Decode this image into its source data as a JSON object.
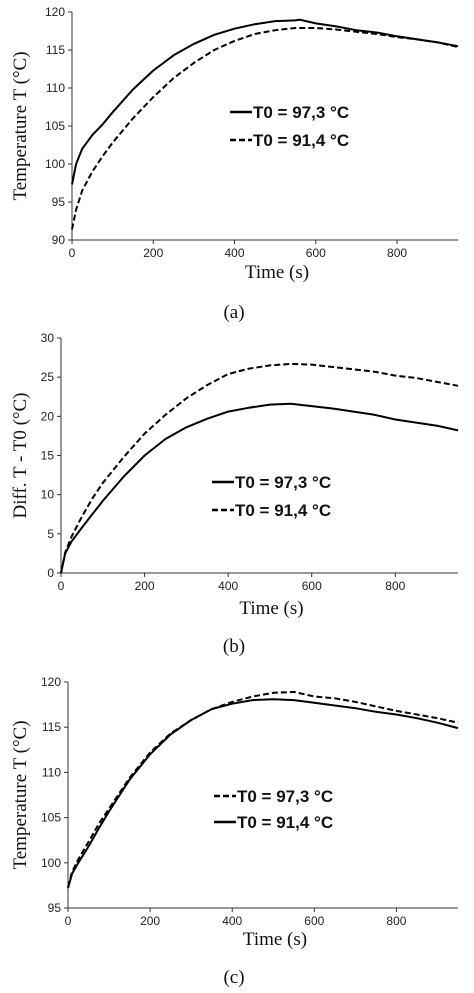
{
  "chart_data": [
    {
      "type": "line",
      "panel_label": "(a)",
      "xlabel": "Time (s)",
      "ylabel": "Temperature T (°C)",
      "xlim": [
        0,
        950
      ],
      "ylim": [
        90,
        120
      ],
      "xticks": [
        0,
        200,
        400,
        600,
        800
      ],
      "yticks": [
        90,
        95,
        100,
        105,
        110,
        115,
        120
      ],
      "legend_position": "center-right",
      "series": [
        {
          "name": "T0 = 97,3 °C",
          "style": "solid",
          "x": [
            0,
            10,
            25,
            50,
            75,
            100,
            150,
            200,
            250,
            300,
            350,
            400,
            450,
            500,
            550,
            560,
            600,
            650,
            700,
            750,
            800,
            850,
            900,
            950
          ],
          "y": [
            97.3,
            100,
            102,
            103.8,
            105.2,
            106.8,
            109.8,
            112.3,
            114.3,
            115.8,
            117,
            117.8,
            118.4,
            118.8,
            118.9,
            119,
            118.5,
            118.1,
            117.6,
            117.3,
            116.8,
            116.4,
            116,
            115.5
          ]
        },
        {
          "name": "T0 = 91,4 °C",
          "style": "dashed",
          "x": [
            0,
            10,
            25,
            50,
            75,
            100,
            150,
            200,
            250,
            300,
            350,
            400,
            450,
            500,
            550,
            600,
            650,
            700,
            750,
            800,
            850,
            900,
            950
          ],
          "y": [
            91.4,
            94,
            96.5,
            99,
            101,
            102.8,
            106,
            108.8,
            111.3,
            113.3,
            115,
            116.2,
            117.1,
            117.6,
            117.9,
            117.9,
            117.7,
            117.4,
            117.1,
            116.7,
            116.4,
            116,
            115.4
          ]
        }
      ]
    },
    {
      "type": "line",
      "panel_label": "(b)",
      "xlabel": "Time (s)",
      "ylabel": "Diff. T - T0 (°C)",
      "xlim": [
        0,
        950
      ],
      "ylim": [
        0,
        30
      ],
      "xticks": [
        0,
        200,
        400,
        600,
        800
      ],
      "yticks": [
        0,
        5,
        10,
        15,
        20,
        25,
        30
      ],
      "legend_position": "center-right",
      "series": [
        {
          "name": "T0 = 97,3 °C",
          "style": "solid",
          "x": [
            0,
            10,
            25,
            50,
            75,
            100,
            150,
            200,
            250,
            300,
            350,
            400,
            450,
            500,
            550,
            600,
            650,
            700,
            750,
            800,
            850,
            900,
            950
          ],
          "y": [
            0,
            2.5,
            4,
            5.8,
            7.5,
            9.2,
            12.3,
            15,
            17.1,
            18.6,
            19.7,
            20.6,
            21.1,
            21.5,
            21.6,
            21.3,
            21,
            20.6,
            20.2,
            19.6,
            19.2,
            18.8,
            18.2
          ]
        },
        {
          "name": "T0 = 91,4 °C",
          "style": "dashed",
          "x": [
            0,
            10,
            25,
            50,
            75,
            100,
            150,
            200,
            250,
            300,
            350,
            400,
            450,
            500,
            550,
            600,
            650,
            700,
            750,
            800,
            850,
            900,
            950
          ],
          "y": [
            0,
            2.6,
            4.6,
            7.2,
            9.5,
            11.5,
            14.8,
            17.8,
            20.2,
            22.3,
            24,
            25.4,
            26.1,
            26.5,
            26.7,
            26.6,
            26.3,
            26,
            25.7,
            25.2,
            24.9,
            24.4,
            23.9
          ]
        }
      ]
    },
    {
      "type": "line",
      "panel_label": "(c)",
      "xlabel": "Time (s)",
      "ylabel": "Temperature T (°C)",
      "xlim": [
        0,
        950
      ],
      "ylim": [
        95,
        120
      ],
      "xticks": [
        0,
        200,
        400,
        600,
        800
      ],
      "yticks": [
        95,
        100,
        105,
        110,
        115,
        120
      ],
      "legend_position": "center-right",
      "series": [
        {
          "name": "T0 = 97,3 °C",
          "style": "dashed",
          "x": [
            0,
            10,
            25,
            50,
            75,
            100,
            150,
            200,
            250,
            300,
            350,
            400,
            450,
            500,
            550,
            600,
            650,
            700,
            750,
            800,
            850,
            900,
            950
          ],
          "y": [
            97.3,
            99,
            100.4,
            102.3,
            104.3,
            106,
            109.4,
            112.2,
            114.3,
            115.8,
            117,
            117.8,
            118.4,
            118.8,
            118.9,
            118.4,
            118.2,
            117.8,
            117.3,
            116.8,
            116.4,
            116,
            115.5
          ]
        },
        {
          "name": "T0 = 91,4 °C",
          "style": "solid",
          "x": [
            0,
            10,
            25,
            50,
            75,
            100,
            150,
            200,
            250,
            300,
            350,
            400,
            450,
            500,
            550,
            600,
            650,
            700,
            750,
            800,
            850,
            900,
            950
          ],
          "y": [
            97.2,
            98.8,
            100,
            101.8,
            103.8,
            105.7,
            109.2,
            112,
            114.2,
            115.8,
            117,
            117.6,
            118,
            118.1,
            118,
            117.7,
            117.4,
            117.1,
            116.7,
            116.4,
            116,
            115.5,
            114.9
          ]
        }
      ]
    }
  ]
}
